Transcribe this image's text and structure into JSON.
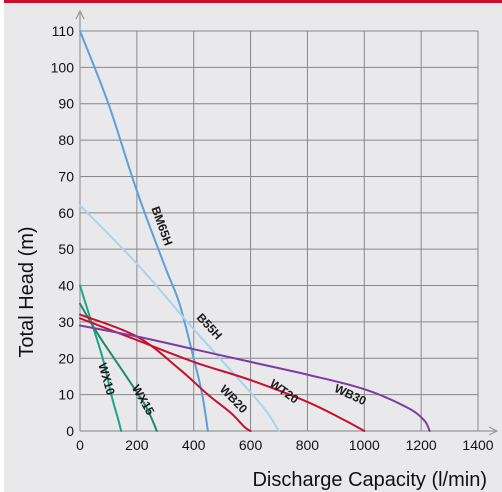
{
  "chart_data": {
    "type": "line",
    "title": "",
    "xlabel": "Discharge Capacity (l/min)",
    "ylabel": "Total Head (m)",
    "xlim": [
      0,
      1400
    ],
    "ylim": [
      0,
      110
    ],
    "x_ticks": [
      0,
      200,
      400,
      600,
      800,
      1000,
      1200,
      1400
    ],
    "y_ticks": [
      0,
      10,
      20,
      30,
      40,
      50,
      60,
      70,
      80,
      90,
      100,
      110
    ],
    "grid": true,
    "legend": "none (series labeled on curves)",
    "series": [
      {
        "name": "WX10",
        "color": "#1aa58a",
        "x": [
          0,
          40,
          80,
          110,
          135,
          145
        ],
        "y": [
          40,
          30,
          20,
          10,
          3,
          0
        ]
      },
      {
        "name": "WX15",
        "color": "#1f8a6e",
        "x": [
          0,
          60,
          120,
          180,
          230,
          260,
          270
        ],
        "y": [
          35,
          27,
          20,
          13,
          7,
          2,
          0
        ]
      },
      {
        "name": "BM65H",
        "color": "#5f9fd9",
        "x": [
          0,
          100,
          200,
          300,
          350,
          400,
          430,
          450
        ],
        "y": [
          110,
          90,
          66,
          45,
          35,
          20,
          10,
          0
        ]
      },
      {
        "name": "B55H",
        "color": "#a8d3ee",
        "x": [
          0,
          200,
          400,
          550,
          650,
          700
        ],
        "y": [
          62,
          46,
          28,
          15,
          6,
          0
        ]
      },
      {
        "name": "WB20",
        "color": "#c8102e",
        "x": [
          0,
          200,
          350,
          450,
          530,
          580,
          600
        ],
        "y": [
          32,
          26,
          17,
          10,
          5,
          1,
          0
        ]
      },
      {
        "name": "WT20",
        "color": "#c8102e",
        "x": [
          0,
          200,
          400,
          600,
          800,
          930,
          1000
        ],
        "y": [
          31,
          25,
          19,
          14,
          8,
          3,
          0
        ]
      },
      {
        "name": "WB30",
        "color": "#7b3ea0",
        "x": [
          0,
          200,
          400,
          600,
          800,
          1000,
          1150,
          1210,
          1230
        ],
        "y": [
          29,
          26,
          22.5,
          19,
          15.5,
          11.5,
          6.5,
          3,
          0
        ]
      }
    ],
    "labels": [
      {
        "text": "WX10",
        "x": 80,
        "y": 14,
        "angle": 74
      },
      {
        "text": "WX15",
        "x": 210,
        "y": 8,
        "angle": 60
      },
      {
        "text": "BM65H",
        "x": 275,
        "y": 56,
        "angle": 70
      },
      {
        "text": "B55H",
        "x": 445,
        "y": 28,
        "angle": 47
      },
      {
        "text": "WB20",
        "x": 530,
        "y": 8,
        "angle": 46
      },
      {
        "text": "WT20",
        "x": 710,
        "y": 10,
        "angle": 36
      },
      {
        "text": "WB30",
        "x": 945,
        "y": 9,
        "angle": 25
      }
    ]
  },
  "colors": {
    "background": "#e9e9eb",
    "grid": "#888888",
    "accent_bar": "#c8102e"
  }
}
